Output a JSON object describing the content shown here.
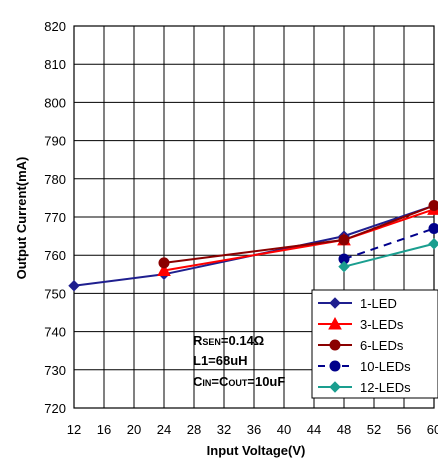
{
  "chart_data": {
    "type": "line",
    "title": "",
    "xlabel": "Input Voltage(V)",
    "ylabel": "Output Current(mA)",
    "xlim": [
      12,
      60
    ],
    "ylim": [
      720,
      820
    ],
    "x_ticks": [
      "12",
      "16",
      "20",
      "24",
      "28",
      "32",
      "36",
      "40",
      "44",
      "48",
      "52",
      "56",
      "60"
    ],
    "y_ticks": [
      "720",
      "730",
      "740",
      "750",
      "760",
      "770",
      "780",
      "790",
      "800",
      "810",
      "820"
    ],
    "grid": true,
    "legend_position": "bottom-right",
    "series": [
      {
        "name": "1-LED",
        "color": "#1f1f8f",
        "marker": "diamond",
        "dashed": false,
        "points": [
          [
            12,
            752
          ],
          [
            24,
            755
          ],
          [
            48,
            765
          ],
          [
            60,
            773
          ]
        ]
      },
      {
        "name": "3-LEDs",
        "color": "#ff0000",
        "marker": "triangle",
        "dashed": false,
        "points": [
          [
            24,
            756
          ],
          [
            48,
            764
          ],
          [
            60,
            772
          ]
        ]
      },
      {
        "name": "6-LEDs",
        "color": "#8b0000",
        "marker": "circle",
        "dashed": false,
        "points": [
          [
            24,
            758
          ],
          [
            48,
            764
          ],
          [
            60,
            773
          ]
        ]
      },
      {
        "name": "10-LEDs",
        "color": "#00008b",
        "marker": "circle",
        "dashed": true,
        "points": [
          [
            48,
            759
          ],
          [
            60,
            767
          ]
        ]
      },
      {
        "name": "12-LEDs",
        "color": "#1a9e8f",
        "marker": "diamond",
        "dashed": false,
        "points": [
          [
            48,
            757
          ],
          [
            60,
            763
          ]
        ]
      }
    ],
    "annotations": {
      "rsen_main": "R",
      "rsen_sub": "SEN",
      "rsen_val": "=0.14Ω",
      "l1": "L1=68uH",
      "cin_main": "C",
      "cin_sub": "IN",
      "cin_eq": "=C",
      "cout_sub": "OUT",
      "cout_val": "=10uF"
    }
  }
}
